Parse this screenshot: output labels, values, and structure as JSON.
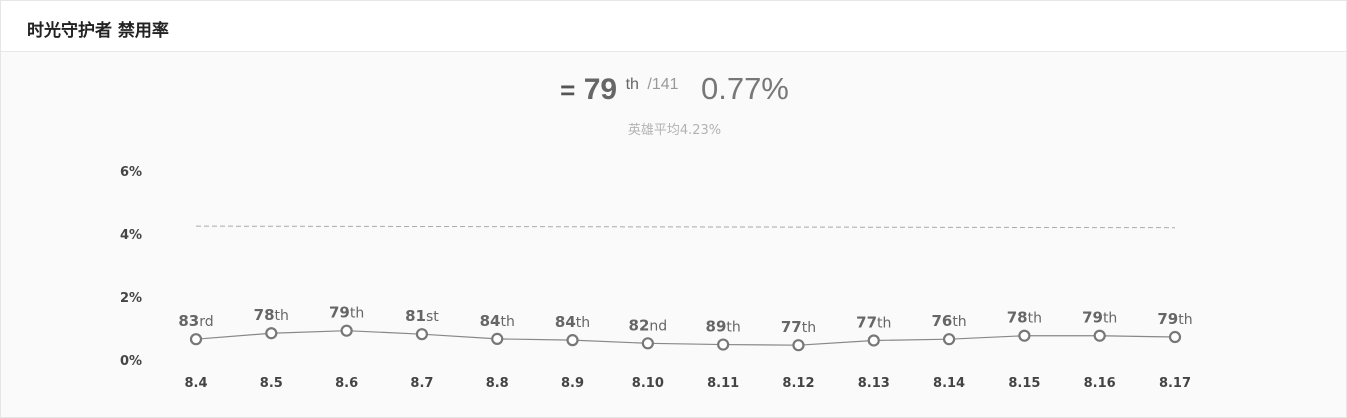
{
  "header": {
    "title": "时光守护者 禁用率"
  },
  "summary": {
    "trend_symbol": "=",
    "rank": "79",
    "rank_suffix": "th",
    "rank_total": "/141",
    "rate": "0.77%",
    "average_label": "英雄平均4.23%"
  },
  "colors": {
    "line": "#888888",
    "marker": "#777777",
    "average_line": "#aaaaaa"
  },
  "chart_data": {
    "type": "line",
    "categories": [
      "8.4",
      "8.5",
      "8.6",
      "8.7",
      "8.8",
      "8.9",
      "8.10",
      "8.11",
      "8.12",
      "8.13",
      "8.14",
      "8.15",
      "8.16",
      "8.17"
    ],
    "series": [
      {
        "values": [
          0.66,
          0.85,
          0.93,
          0.82,
          0.67,
          0.63,
          0.53,
          0.49,
          0.47,
          0.62,
          0.66,
          0.77,
          0.77,
          0.73
        ]
      }
    ],
    "rank_labels": [
      {
        "num": "83",
        "suffix": "rd"
      },
      {
        "num": "78",
        "suffix": "th"
      },
      {
        "num": "79",
        "suffix": "th"
      },
      {
        "num": "81",
        "suffix": "st"
      },
      {
        "num": "84",
        "suffix": "th"
      },
      {
        "num": "84",
        "suffix": "th"
      },
      {
        "num": "82",
        "suffix": "nd"
      },
      {
        "num": "89",
        "suffix": "th"
      },
      {
        "num": "77",
        "suffix": "th"
      },
      {
        "num": "77",
        "suffix": "th"
      },
      {
        "num": "76",
        "suffix": "th"
      },
      {
        "num": "78",
        "suffix": "th"
      },
      {
        "num": "79",
        "suffix": "th"
      },
      {
        "num": "79",
        "suffix": "th"
      }
    ],
    "average_line": {
      "start": 4.25,
      "end": 4.2
    },
    "yticks": [
      0,
      2,
      4,
      6
    ],
    "ytick_labels": [
      "0%",
      "2%",
      "4%",
      "6%"
    ],
    "ylim": [
      0,
      6
    ],
    "grid": false
  }
}
